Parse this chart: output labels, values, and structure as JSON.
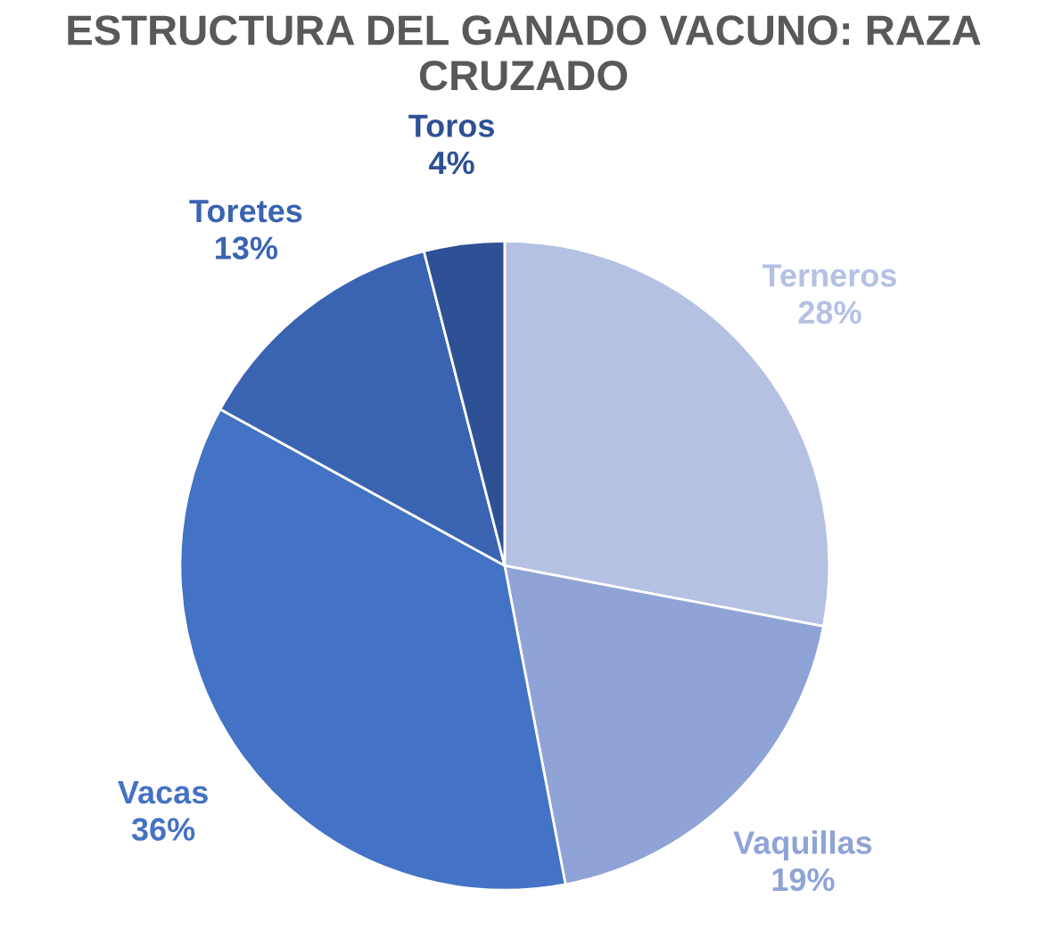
{
  "chart_data": {
    "type": "pie",
    "title": "ESTRUCTURA DEL GANADO VACUNO: RAZA CRUZADO",
    "categories": [
      "Terneros",
      "Vaquillas",
      "Vacas",
      "Toretes",
      "Toros"
    ],
    "values": [
      28,
      19,
      36,
      13,
      4
    ],
    "value_labels": [
      "28%",
      "19%",
      "36%",
      "13%",
      "4%"
    ],
    "colors": [
      "#b4c1e3",
      "#8fa3d6",
      "#4472c4",
      "#3a63b2",
      "#2e5095"
    ],
    "legend": false
  }
}
